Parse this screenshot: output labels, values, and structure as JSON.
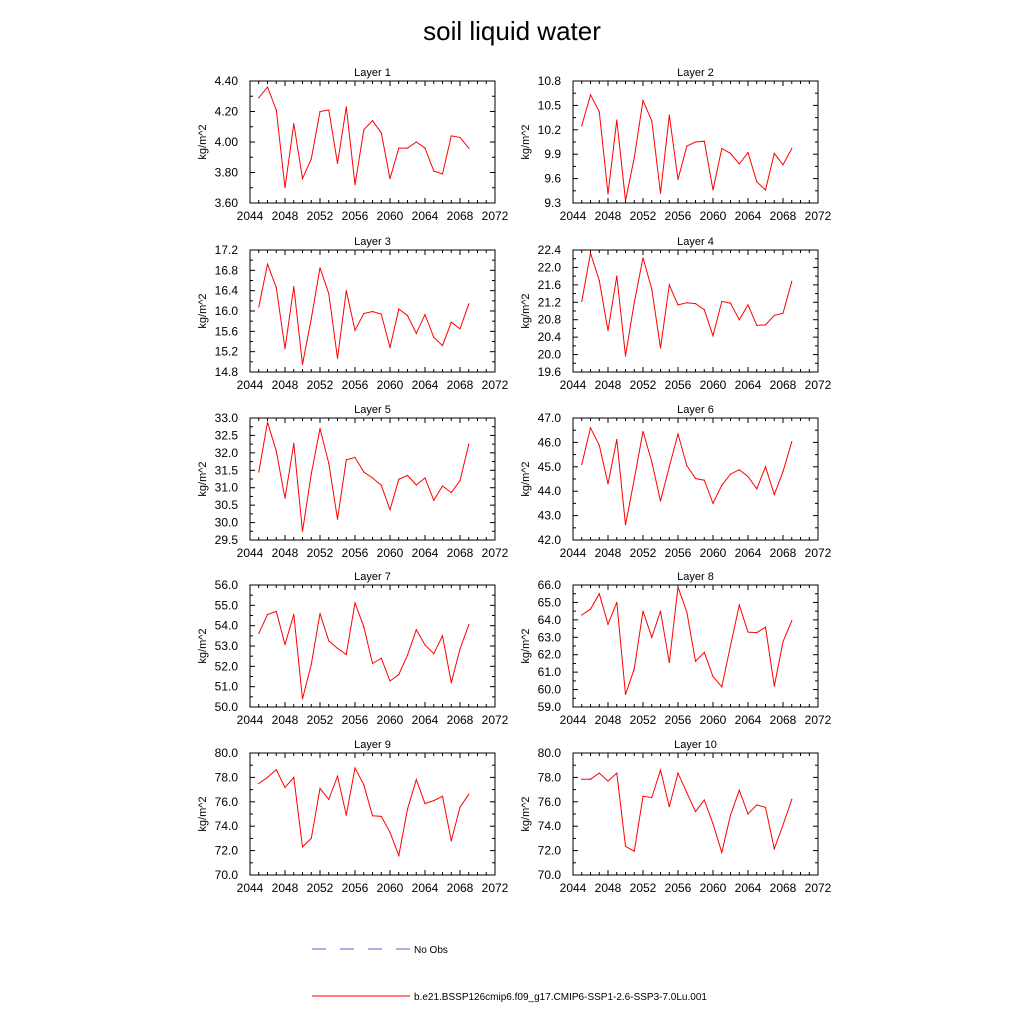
{
  "title": "soil liquid water",
  "legend": {
    "obs_label": "No Obs",
    "model_label": "b.e21.BSSP126cmip6.f09_g17.CMIP6-SSP1-2.6-SSP3-7.0Lu.001"
  },
  "colors": {
    "model": "#ff0000",
    "obs": "#5566cc",
    "axis": "#000000"
  },
  "chart_data": [
    {
      "type": "line",
      "title": "Layer 1",
      "ylabel": "kg/m^2",
      "xlim": [
        2044,
        2072
      ],
      "xticks": [
        2044,
        2048,
        2052,
        2056,
        2060,
        2064,
        2068,
        2072
      ],
      "ylim": [
        3.6,
        4.4
      ],
      "yticks": [
        "3.60",
        "3.80",
        "4.00",
        "4.20",
        "4.40"
      ],
      "series": [
        {
          "x": [
            2045,
            2046,
            2047,
            2048,
            2049,
            2050,
            2051,
            2052,
            2053,
            2054,
            2055,
            2056,
            2057,
            2058,
            2059,
            2060,
            2061,
            2062,
            2063,
            2064,
            2065,
            2066,
            2067,
            2068,
            2069
          ],
          "y": [
            4.29,
            4.36,
            4.21,
            3.7,
            4.12,
            3.76,
            3.89,
            4.2,
            4.21,
            3.86,
            4.23,
            3.72,
            4.08,
            4.14,
            4.06,
            3.76,
            3.96,
            3.96,
            4.0,
            3.96,
            3.81,
            3.79,
            4.04,
            4.03,
            3.96
          ]
        }
      ]
    },
    {
      "type": "line",
      "title": "Layer 2",
      "ylabel": "kg/m^2",
      "xlim": [
        2044,
        2072
      ],
      "xticks": [
        2044,
        2048,
        2052,
        2056,
        2060,
        2064,
        2068,
        2072
      ],
      "ylim": [
        9.3,
        10.8
      ],
      "yticks": [
        "9.3",
        "9.6",
        "9.9",
        "10.2",
        "10.5",
        "10.8"
      ],
      "series": [
        {
          "x": [
            2045,
            2046,
            2047,
            2048,
            2049,
            2050,
            2051,
            2052,
            2053,
            2054,
            2055,
            2056,
            2057,
            2058,
            2059,
            2060,
            2061,
            2062,
            2063,
            2064,
            2065,
            2066,
            2067,
            2068,
            2069
          ],
          "y": [
            10.25,
            10.63,
            10.42,
            9.41,
            10.32,
            9.33,
            9.86,
            10.56,
            10.31,
            9.42,
            10.38,
            9.59,
            10.0,
            10.05,
            10.06,
            9.46,
            9.97,
            9.91,
            9.78,
            9.92,
            9.56,
            9.46,
            9.91,
            9.77,
            9.97
          ]
        }
      ]
    },
    {
      "type": "line",
      "title": "Layer 3",
      "ylabel": "kg/m^2",
      "xlim": [
        2044,
        2072
      ],
      "xticks": [
        2044,
        2048,
        2052,
        2056,
        2060,
        2064,
        2068,
        2072
      ],
      "ylim": [
        14.8,
        17.2
      ],
      "yticks": [
        "14.8",
        "15.2",
        "15.6",
        "16.0",
        "16.4",
        "16.8",
        "17.2"
      ],
      "series": [
        {
          "x": [
            2045,
            2046,
            2047,
            2048,
            2049,
            2050,
            2051,
            2052,
            2053,
            2054,
            2055,
            2056,
            2057,
            2058,
            2059,
            2060,
            2061,
            2062,
            2063,
            2064,
            2065,
            2066,
            2067,
            2068,
            2069
          ],
          "y": [
            16.08,
            16.92,
            16.46,
            15.26,
            16.48,
            14.95,
            15.85,
            16.85,
            16.34,
            15.07,
            16.4,
            15.62,
            15.95,
            15.99,
            15.94,
            15.28,
            16.04,
            15.91,
            15.56,
            15.93,
            15.48,
            15.32,
            15.78,
            15.65,
            16.14
          ]
        }
      ]
    },
    {
      "type": "line",
      "title": "Layer 4",
      "ylabel": "kg/m^2",
      "xlim": [
        2044,
        2072
      ],
      "xticks": [
        2044,
        2048,
        2052,
        2056,
        2060,
        2064,
        2068,
        2072
      ],
      "ylim": [
        19.6,
        22.4
      ],
      "yticks": [
        "19.6",
        "20.0",
        "20.4",
        "20.8",
        "21.2",
        "21.6",
        "22.0",
        "22.4"
      ],
      "series": [
        {
          "x": [
            2045,
            2046,
            2047,
            2048,
            2049,
            2050,
            2051,
            2052,
            2053,
            2054,
            2055,
            2056,
            2057,
            2058,
            2059,
            2060,
            2061,
            2062,
            2063,
            2064,
            2065,
            2066,
            2067,
            2068,
            2069
          ],
          "y": [
            21.22,
            22.33,
            21.7,
            20.55,
            21.8,
            19.97,
            21.2,
            22.22,
            21.5,
            20.15,
            21.6,
            21.14,
            21.19,
            21.17,
            21.03,
            20.43,
            21.22,
            21.18,
            20.8,
            21.14,
            20.67,
            20.68,
            20.9,
            20.95,
            21.68
          ]
        }
      ]
    },
    {
      "type": "line",
      "title": "Layer 5",
      "ylabel": "kg/m^2",
      "xlim": [
        2044,
        2072
      ],
      "xticks": [
        2044,
        2048,
        2052,
        2056,
        2060,
        2064,
        2068,
        2072
      ],
      "ylim": [
        29.5,
        33.0
      ],
      "yticks": [
        "29.5",
        "30.0",
        "30.5",
        "31.0",
        "31.5",
        "32.0",
        "32.5",
        "33.0"
      ],
      "series": [
        {
          "x": [
            2045,
            2046,
            2047,
            2048,
            2049,
            2050,
            2051,
            2052,
            2053,
            2054,
            2055,
            2056,
            2057,
            2058,
            2059,
            2060,
            2061,
            2062,
            2063,
            2064,
            2065,
            2066,
            2067,
            2068,
            2069
          ],
          "y": [
            31.45,
            32.88,
            32.05,
            30.7,
            32.27,
            29.75,
            31.4,
            32.7,
            31.7,
            30.1,
            31.8,
            31.87,
            31.45,
            31.28,
            31.07,
            30.37,
            31.24,
            31.35,
            31.08,
            31.28,
            30.64,
            31.05,
            30.86,
            31.2,
            32.25
          ]
        }
      ]
    },
    {
      "type": "line",
      "title": "Layer 6",
      "ylabel": "kg/m^2",
      "xlim": [
        2044,
        2072
      ],
      "xticks": [
        2044,
        2048,
        2052,
        2056,
        2060,
        2064,
        2068,
        2072
      ],
      "ylim": [
        42.0,
        47.0
      ],
      "yticks": [
        "42.0",
        "43.0",
        "44.0",
        "45.0",
        "46.0",
        "47.0"
      ],
      "series": [
        {
          "x": [
            2045,
            2046,
            2047,
            2048,
            2049,
            2050,
            2051,
            2052,
            2053,
            2054,
            2055,
            2056,
            2057,
            2058,
            2059,
            2060,
            2061,
            2062,
            2063,
            2064,
            2065,
            2066,
            2067,
            2068,
            2069
          ],
          "y": [
            45.1,
            46.6,
            45.88,
            44.3,
            46.12,
            42.62,
            44.5,
            46.45,
            45.2,
            43.6,
            45.0,
            46.35,
            45.05,
            44.52,
            44.45,
            43.5,
            44.24,
            44.7,
            44.88,
            44.6,
            44.1,
            45.0,
            43.86,
            44.8,
            46.03
          ]
        }
      ]
    },
    {
      "type": "line",
      "title": "Layer 7",
      "ylabel": "kg/m^2",
      "xlim": [
        2044,
        2072
      ],
      "xticks": [
        2044,
        2048,
        2052,
        2056,
        2060,
        2064,
        2068,
        2072
      ],
      "ylim": [
        50.0,
        56.0
      ],
      "yticks": [
        "50.0",
        "51.0",
        "52.0",
        "53.0",
        "54.0",
        "55.0",
        "56.0"
      ],
      "series": [
        {
          "x": [
            2045,
            2046,
            2047,
            2048,
            2049,
            2050,
            2051,
            2052,
            2053,
            2054,
            2055,
            2056,
            2057,
            2058,
            2059,
            2060,
            2061,
            2062,
            2063,
            2064,
            2065,
            2066,
            2067,
            2068,
            2069
          ],
          "y": [
            53.62,
            54.55,
            54.7,
            53.08,
            54.55,
            50.4,
            52.1,
            54.6,
            53.25,
            52.88,
            52.58,
            55.12,
            53.95,
            52.14,
            52.4,
            51.28,
            51.6,
            52.55,
            53.8,
            53.05,
            52.62,
            53.5,
            51.2,
            52.85,
            54.05
          ]
        }
      ]
    },
    {
      "type": "line",
      "title": "Layer 8",
      "ylabel": "kg/m^2",
      "xlim": [
        2044,
        2072
      ],
      "xticks": [
        2044,
        2048,
        2052,
        2056,
        2060,
        2064,
        2068,
        2072
      ],
      "ylim": [
        59.0,
        66.0
      ],
      "yticks": [
        "59.0",
        "60.0",
        "61.0",
        "62.0",
        "63.0",
        "64.0",
        "65.0",
        "66.0"
      ],
      "series": [
        {
          "x": [
            2045,
            2046,
            2047,
            2048,
            2049,
            2050,
            2051,
            2052,
            2053,
            2054,
            2055,
            2056,
            2057,
            2058,
            2059,
            2060,
            2061,
            2062,
            2063,
            2064,
            2065,
            2066,
            2067,
            2068,
            2069
          ],
          "y": [
            64.28,
            64.62,
            65.5,
            63.75,
            65.0,
            59.72,
            61.2,
            64.5,
            63.0,
            64.5,
            61.55,
            65.88,
            64.45,
            61.63,
            62.13,
            60.75,
            60.16,
            62.52,
            64.85,
            63.3,
            63.27,
            63.58,
            60.2,
            62.75,
            63.95
          ]
        }
      ]
    },
    {
      "type": "line",
      "title": "Layer 9",
      "ylabel": "kg/m^2",
      "xlim": [
        2044,
        2072
      ],
      "xticks": [
        2044,
        2048,
        2052,
        2056,
        2060,
        2064,
        2068,
        2072
      ],
      "ylim": [
        70.0,
        80.0
      ],
      "yticks": [
        "70.0",
        "72.0",
        "74.0",
        "76.0",
        "78.0",
        "80.0"
      ],
      "series": [
        {
          "x": [
            2045,
            2046,
            2047,
            2048,
            2049,
            2050,
            2051,
            2052,
            2053,
            2054,
            2055,
            2056,
            2057,
            2058,
            2059,
            2060,
            2061,
            2062,
            2063,
            2064,
            2065,
            2066,
            2067,
            2068,
            2069
          ],
          "y": [
            77.5,
            78.0,
            78.62,
            77.17,
            78.0,
            72.3,
            73.0,
            77.1,
            76.2,
            78.1,
            74.9,
            78.77,
            77.4,
            74.85,
            74.8,
            73.5,
            71.6,
            75.4,
            77.82,
            75.85,
            76.1,
            76.45,
            72.8,
            75.55,
            76.62
          ]
        }
      ]
    },
    {
      "type": "line",
      "title": "Layer 10",
      "ylabel": "kg/m^2",
      "xlim": [
        2044,
        2072
      ],
      "xticks": [
        2044,
        2048,
        2052,
        2056,
        2060,
        2064,
        2068,
        2072
      ],
      "ylim": [
        70.0,
        80.0
      ],
      "yticks": [
        "70.0",
        "72.0",
        "74.0",
        "76.0",
        "78.0",
        "80.0"
      ],
      "series": [
        {
          "x": [
            2045,
            2046,
            2047,
            2048,
            2049,
            2050,
            2051,
            2052,
            2053,
            2054,
            2055,
            2056,
            2057,
            2058,
            2059,
            2060,
            2061,
            2062,
            2063,
            2064,
            2065,
            2066,
            2067,
            2068,
            2069
          ],
          "y": [
            77.85,
            77.85,
            78.35,
            77.7,
            78.35,
            72.35,
            71.95,
            76.45,
            76.35,
            78.6,
            75.6,
            78.35,
            76.75,
            75.2,
            76.15,
            74.2,
            71.85,
            74.9,
            76.95,
            75.0,
            75.75,
            75.55,
            72.15,
            74.1,
            76.2
          ]
        }
      ]
    }
  ]
}
